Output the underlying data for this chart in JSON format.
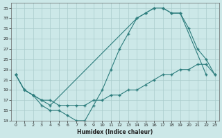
{
  "bg_color": "#cce8e8",
  "grid_color": "#aacccc",
  "line_color": "#2d7d7d",
  "xlabel": "Humidex (Indice chaleur)",
  "ylim": [
    13,
    36
  ],
  "xlim": [
    -0.5,
    23.5
  ],
  "yticks": [
    13,
    15,
    17,
    19,
    21,
    23,
    25,
    27,
    29,
    31,
    33,
    35
  ],
  "xticks": [
    0,
    1,
    2,
    3,
    4,
    5,
    6,
    7,
    8,
    9,
    10,
    11,
    12,
    13,
    14,
    15,
    16,
    17,
    18,
    19,
    20,
    21,
    22,
    23
  ],
  "line1_x": [
    0,
    1,
    2,
    3,
    4,
    5,
    6,
    7,
    8,
    9,
    10,
    11,
    12,
    13,
    14,
    15,
    16,
    17,
    18,
    19,
    22
  ],
  "line1_y": [
    22,
    19,
    18,
    16,
    15,
    15,
    14,
    13,
    13,
    16,
    19,
    23,
    27,
    30,
    33,
    34,
    35,
    35,
    34,
    34,
    22
  ],
  "line2_x": [
    0,
    1,
    2,
    3,
    4,
    5,
    6,
    7,
    8,
    9,
    10,
    11,
    12,
    13,
    14,
    15,
    16,
    17,
    18,
    19,
    20,
    21,
    22,
    23
  ],
  "line2_y": [
    22,
    19,
    18,
    17,
    17,
    16,
    16,
    16,
    16,
    17,
    17,
    18,
    18,
    19,
    19,
    20,
    21,
    22,
    22,
    23,
    23,
    24,
    24,
    22
  ],
  "line3_x": [
    0,
    1,
    2,
    3,
    4,
    14,
    15,
    16,
    17,
    18,
    19,
    20,
    21,
    22,
    23
  ],
  "line3_y": [
    22,
    19,
    18,
    17,
    16,
    33,
    34,
    35,
    35,
    34,
    34,
    31,
    27,
    25,
    22
  ]
}
